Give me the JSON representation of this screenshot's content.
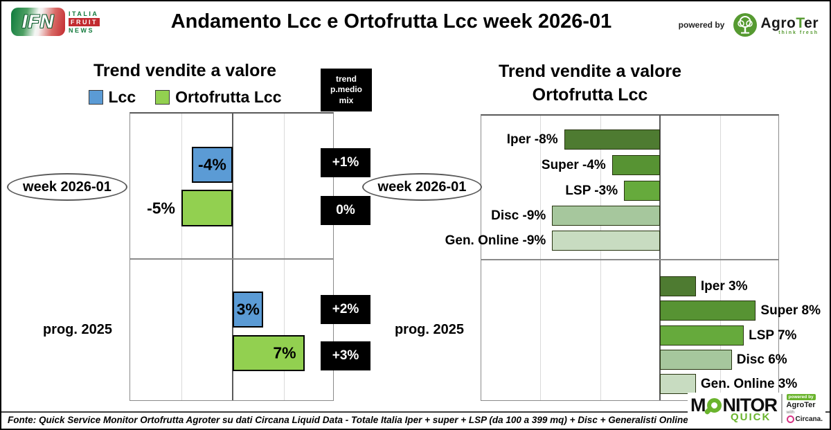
{
  "header": {
    "title": "Andamento Lcc e Ortofrutta Lcc week 2026-01",
    "ifn": {
      "abbr": "IFN",
      "line1": "ITALIA",
      "line2": "FRUIT",
      "line3": "NEWS"
    },
    "powered_by": "powered by",
    "agroter_parts": [
      "Agro",
      "T",
      "er"
    ],
    "agroter_tagline": "think fresh"
  },
  "chart_data": [
    {
      "type": "bar",
      "orientation": "horizontal",
      "title": "Trend vendite a valore",
      "side_header_lines": [
        "trend",
        "p.medio",
        "mix"
      ],
      "xlim": [
        -10,
        10
      ],
      "gridline_step_pct": 5,
      "grid": true,
      "legend_position": "top",
      "legend": [
        {
          "label": "Lcc",
          "color": "#5b9bd5"
        },
        {
          "label": "Ortofrutta Lcc",
          "color": "#92d050"
        }
      ],
      "groups": [
        {
          "label": "week 2026-01",
          "bars": [
            {
              "series": "Lcc",
              "value": -4,
              "display": "-4%",
              "trend_pmedio_mix": "+1%",
              "color": "#5b9bd5",
              "label_pos": "inside"
            },
            {
              "series": "Ortofrutta Lcc",
              "value": -5,
              "display": "-5%",
              "trend_pmedio_mix": "0%",
              "color": "#92d050",
              "label_pos": "outside-left"
            }
          ]
        },
        {
          "label": "prog. 2025",
          "bars": [
            {
              "series": "Lcc",
              "value": 3,
              "display": "3%",
              "trend_pmedio_mix": "+2%",
              "color": "#5b9bd5",
              "label_pos": "inside"
            },
            {
              "series": "Ortofrutta Lcc",
              "value": 7,
              "display": "7%",
              "trend_pmedio_mix": "+3%",
              "color": "#92d050",
              "label_pos": "inside-right"
            }
          ]
        }
      ]
    },
    {
      "type": "bar",
      "orientation": "horizontal",
      "title": "Trend vendite a valore Ortofrutta Lcc",
      "title_lines": [
        "Trend vendite a valore",
        "Ortofrutta Lcc"
      ],
      "xlim": [
        -15,
        10
      ],
      "gridline_step_pct": 5,
      "grid": true,
      "groups": [
        {
          "label": "week 2026-01",
          "bars": [
            {
              "category": "Iper",
              "value": -8,
              "display": "Iper -8%",
              "color": "#4e7b31"
            },
            {
              "category": "Super",
              "value": -4,
              "display": "Super -4%",
              "color": "#579333"
            },
            {
              "category": "LSP",
              "value": -3,
              "display": "LSP -3%",
              "color": "#66aa3c"
            },
            {
              "category": "Disc",
              "value": -9,
              "display": "Disc -9%",
              "color": "#a6c79d"
            },
            {
              "category": "Gen. Online",
              "value": -9,
              "display": "Gen. Online -9%",
              "color": "#c8dcc1"
            }
          ]
        },
        {
          "label": "prog. 2025",
          "bars": [
            {
              "category": "Iper",
              "value": 3,
              "display": "Iper 3%",
              "color": "#4e7b31"
            },
            {
              "category": "Super",
              "value": 8,
              "display": "Super 8%",
              "color": "#579333"
            },
            {
              "category": "LSP",
              "value": 7,
              "display": "LSP 7%",
              "color": "#66aa3c"
            },
            {
              "category": "Disc",
              "value": 6,
              "display": "Disc 6%",
              "color": "#a6c79d"
            },
            {
              "category": "Gen. Online",
              "value": 3,
              "display": "Gen. Online 3%",
              "color": "#c8dcc1"
            }
          ]
        }
      ]
    }
  ],
  "colors": {
    "lcc_blue": "#5b9bd5",
    "ortofrutta_green": "#92d050",
    "trend_box_bg": "#000000",
    "ifn_green": "#137a3d",
    "ifn_red": "#c22b30",
    "agroter_green": "#569a31",
    "monitor_green": "#6ab42d"
  },
  "footer": {
    "source": "Fonte: Quick Service Monitor Ortofrutta Agroter su dati Circana Liquid Data - Totale Italia Iper + super + LSP (da 100 a 399 mq) + Disc + Generalisti Online - Lcc"
  },
  "monitor_logo": {
    "word_parts": [
      "M",
      "NITOR"
    ],
    "quick": "QUICK",
    "powered_by": "powered by",
    "agroter": "AgroTer",
    "with": "with",
    "circana": "Circana."
  }
}
